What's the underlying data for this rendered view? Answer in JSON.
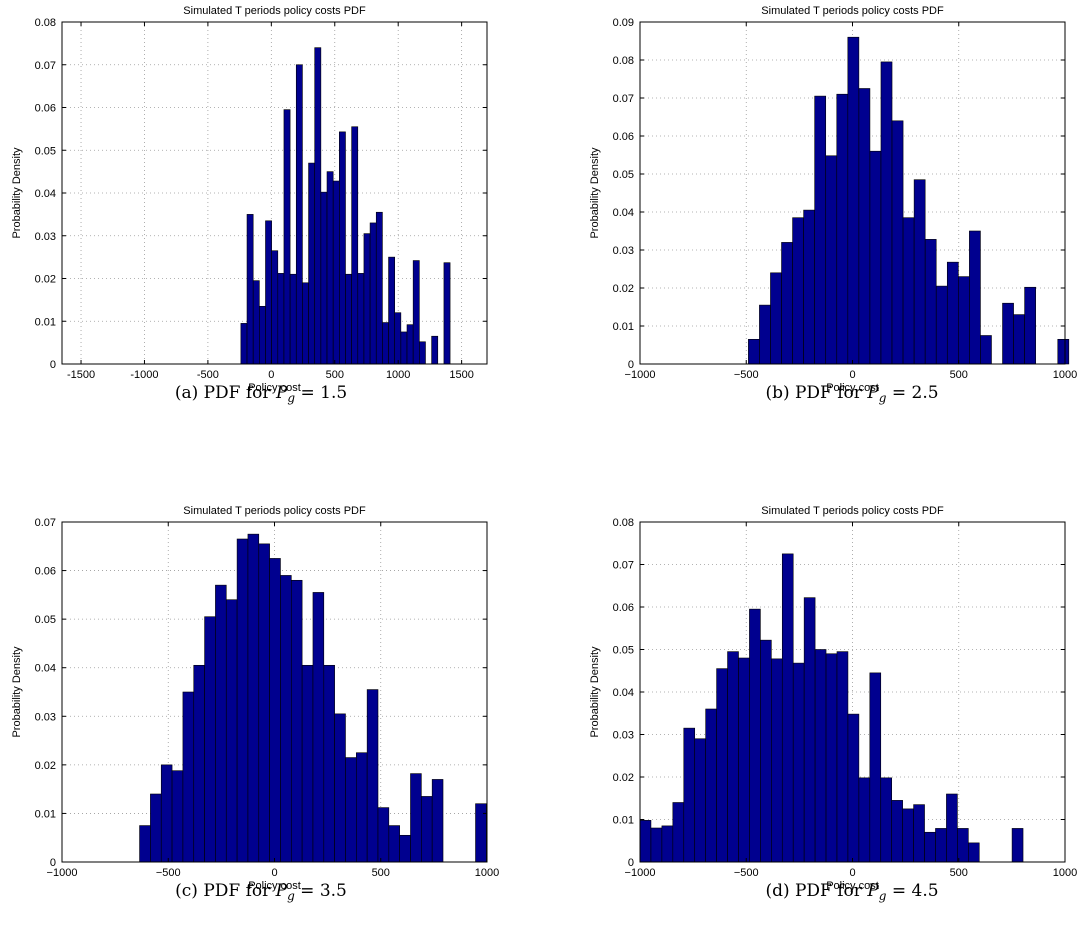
{
  "bar_color": "#00008f",
  "chart_data": [
    {
      "id": "a",
      "type": "bar",
      "title": "Simulated T periods policy costs PDF",
      "xlabel": "Policy cost",
      "ylabel": "Probability Density",
      "xlim": [
        -1650,
        1700
      ],
      "ylim": [
        0,
        0.08
      ],
      "xticks": [
        -1500,
        -1000,
        -500,
        0,
        500,
        1000,
        1500
      ],
      "xtick_labels": [
        "-1500",
        "-1000",
        "-500",
        "0",
        "500",
        "1000",
        "1500"
      ],
      "yticks": [
        0,
        0.01,
        0.02,
        0.03,
        0.04,
        0.05,
        0.06,
        0.07,
        0.08
      ],
      "ytick_labels": [
        "0",
        "0.01",
        "0.02",
        "0.03",
        "0.04",
        "0.05",
        "0.06",
        "0.07",
        "0.08"
      ],
      "grid": true,
      "bin_start": -240,
      "bin_width": 48.5,
      "values": [
        0.0095,
        0.035,
        0.0195,
        0.0135,
        0.0335,
        0.0265,
        0.0212,
        0.0595,
        0.021,
        0.07,
        0.019,
        0.047,
        0.074,
        0.0402,
        0.045,
        0.0428,
        0.0543,
        0.021,
        0.0555,
        0.0212,
        0.0305,
        0.033,
        0.0355,
        0.0097,
        0.025,
        0.012,
        0.0075,
        0.0092,
        0.0242,
        0.0052,
        0,
        0.0065,
        0,
        0.0237
      ],
      "caption": {
        "prefix": "(a)  PDF for ",
        "var": "P",
        "sub": "g",
        "suffix": " = 1.5"
      }
    },
    {
      "id": "b",
      "type": "bar",
      "title": "Simulated T periods policy costs PDF",
      "xlabel": "Policy cost",
      "ylabel": "Probability Density",
      "xlim": [
        -1000,
        1000
      ],
      "ylim": [
        0,
        0.09
      ],
      "xticks": [
        -1000,
        -500,
        0,
        500,
        1000
      ],
      "xtick_labels": [
        "−1000",
        "−500",
        "0",
        "500",
        "1000"
      ],
      "yticks": [
        0,
        0.01,
        0.02,
        0.03,
        0.04,
        0.05,
        0.06,
        0.07,
        0.08,
        0.09
      ],
      "ytick_labels": [
        "0",
        "0.01",
        "0.02",
        "0.03",
        "0.04",
        "0.05",
        "0.06",
        "0.07",
        "0.08",
        "0.09"
      ],
      "grid": true,
      "bin_start": -490,
      "bin_width": 52,
      "values": [
        0.0065,
        0.0155,
        0.024,
        0.032,
        0.0385,
        0.0405,
        0.0705,
        0.0548,
        0.071,
        0.086,
        0.0725,
        0.056,
        0.0795,
        0.064,
        0.0385,
        0.0485,
        0.0328,
        0.0205,
        0.0268,
        0.023,
        0.035,
        0.0075,
        0,
        0.016,
        0.013,
        0.0202,
        0,
        0,
        0.0065
      ],
      "caption": {
        "prefix": "(b)  PDF for ",
        "var": "P",
        "sub": "g",
        "suffix": " = 2.5"
      }
    },
    {
      "id": "c",
      "type": "bar",
      "title": "Simulated T periods policy costs PDF",
      "xlabel": "Policy cost",
      "ylabel": "Probability Density",
      "xlim": [
        -1000,
        1000
      ],
      "ylim": [
        0,
        0.07
      ],
      "xticks": [
        -1000,
        -500,
        0,
        500,
        1000
      ],
      "xtick_labels": [
        "−1000",
        "−500",
        "0",
        "500",
        "1000"
      ],
      "yticks": [
        0,
        0.01,
        0.02,
        0.03,
        0.04,
        0.05,
        0.06,
        0.07
      ],
      "ytick_labels": [
        "0",
        "0.01",
        "0.02",
        "0.03",
        "0.04",
        "0.05",
        "0.06",
        "0.07"
      ],
      "grid": true,
      "bin_start": -635,
      "bin_width": 51,
      "values": [
        0.0075,
        0.014,
        0.02,
        0.0188,
        0.035,
        0.0405,
        0.0505,
        0.057,
        0.054,
        0.0665,
        0.0675,
        0.0655,
        0.0625,
        0.059,
        0.058,
        0.0405,
        0.0555,
        0.0405,
        0.0305,
        0.0215,
        0.0225,
        0.0355,
        0.0112,
        0.0075,
        0.0055,
        0.0182,
        0.0135,
        0.017,
        0,
        0,
        0,
        0.012
      ],
      "caption": {
        "prefix": "(c)  PDF for ",
        "var": "P",
        "sub": "g",
        "suffix": " = 3.5"
      }
    },
    {
      "id": "d",
      "type": "bar",
      "title": "Simulated T periods policy costs PDF",
      "xlabel": "Policy cost",
      "ylabel": "Probability Density",
      "xlim": [
        -1000,
        1000
      ],
      "ylim": [
        0,
        0.08
      ],
      "xticks": [
        -1000,
        -500,
        0,
        500,
        1000
      ],
      "xtick_labels": [
        "−1000",
        "−500",
        "0",
        "500",
        "1000"
      ],
      "yticks": [
        0,
        0.01,
        0.02,
        0.03,
        0.04,
        0.05,
        0.06,
        0.07,
        0.08
      ],
      "ytick_labels": [
        "0",
        "0.01",
        "0.02",
        "0.03",
        "0.04",
        "0.05",
        "0.06",
        "0.07",
        "0.08"
      ],
      "grid": true,
      "bin_start": -1000,
      "bin_width": 51.5,
      "values": [
        0.0098,
        0.008,
        0.0085,
        0.014,
        0.0315,
        0.029,
        0.036,
        0.0455,
        0.0495,
        0.048,
        0.0595,
        0.0522,
        0.0478,
        0.0725,
        0.0468,
        0.0622,
        0.05,
        0.049,
        0.0495,
        0.0348,
        0.0198,
        0.0445,
        0.0198,
        0.0145,
        0.0125,
        0.0135,
        0.007,
        0.0079,
        0.016,
        0.0079,
        0.0045,
        0,
        0,
        0,
        0.0079
      ],
      "caption": {
        "prefix": "(d)  PDF for ",
        "var": "P",
        "sub": "g",
        "suffix": " = 4.5"
      }
    }
  ]
}
